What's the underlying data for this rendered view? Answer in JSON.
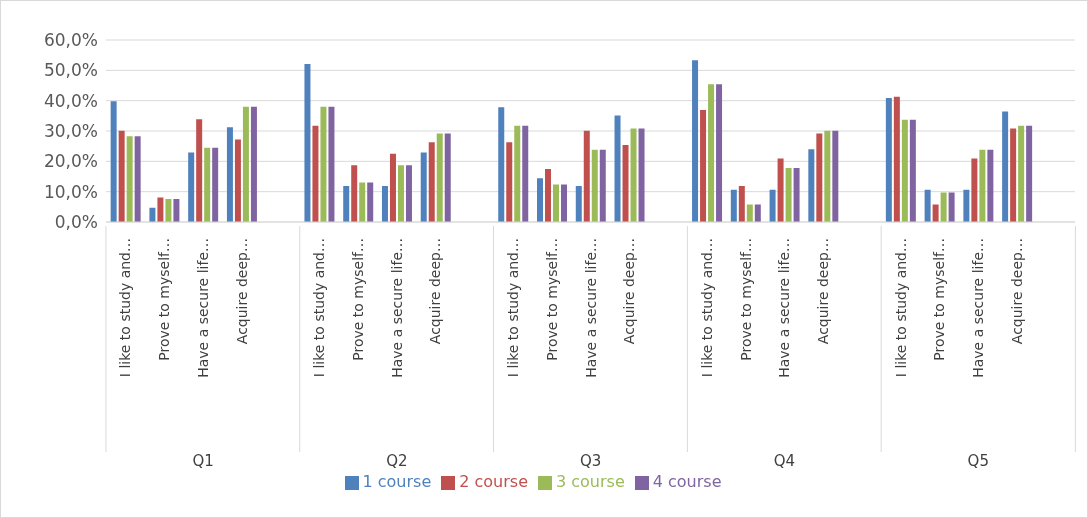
{
  "chart_data": {
    "type": "bar",
    "categories": [
      "I like to study and…",
      "Prove to myself…",
      "Have a secure life…",
      "Acquire deep…",
      null,
      "I like to study and…",
      "Prove to myself…",
      "Have a secure life…",
      "Acquire deep…",
      null,
      "I like to study and…",
      "Prove to myself…",
      "Have a secure life…",
      "Acquire deep…",
      null,
      "I like to study and…",
      "Prove to myself…",
      "Have a secure life…",
      "Acquire deep…",
      null,
      "I like to study and…",
      "Prove to myself…",
      "Have a secure life…",
      "Acquire deep…",
      null
    ],
    "series": [
      {
        "name": "1 course",
        "color": "#4f81bd",
        "values": [
          39.8,
          4.7,
          22.9,
          31.2,
          null,
          52.1,
          11.9,
          11.9,
          22.9,
          null,
          37.8,
          14.4,
          11.9,
          35.1,
          null,
          53.3,
          10.6,
          10.6,
          24.0,
          null,
          40.9,
          10.6,
          10.6,
          36.4,
          null
        ]
      },
      {
        "name": "2 course",
        "color": "#c0504d",
        "values": [
          30.1,
          8.1,
          33.9,
          27.2,
          null,
          31.7,
          18.7,
          22.5,
          26.3,
          null,
          26.3,
          17.5,
          30.1,
          25.4,
          null,
          36.9,
          11.9,
          20.9,
          29.2,
          null,
          41.3,
          5.8,
          20.9,
          30.8,
          null
        ]
      },
      {
        "name": "3 course",
        "color": "#9bbb59",
        "values": [
          28.3,
          7.6,
          24.5,
          38.0,
          null,
          38.0,
          13.0,
          18.7,
          29.2,
          null,
          31.7,
          12.4,
          23.8,
          30.8,
          null,
          45.4,
          5.8,
          17.8,
          30.1,
          null,
          33.7,
          9.7,
          23.8,
          31.7,
          null
        ]
      },
      {
        "name": "4 course",
        "color": "#8064a2",
        "values": [
          28.3,
          7.6,
          24.5,
          38.0,
          null,
          38.0,
          13.0,
          18.7,
          29.2,
          null,
          31.7,
          12.4,
          23.8,
          30.8,
          null,
          45.4,
          5.8,
          17.8,
          30.1,
          null,
          33.7,
          9.7,
          23.8,
          31.7,
          null
        ]
      }
    ],
    "annotations": [
      "Q1",
      "Q2",
      "Q3",
      "Q4",
      "Q5"
    ],
    "ylim": [
      0,
      60
    ],
    "yticks": [
      {
        "value": 0,
        "label": "0,0%"
      },
      {
        "value": 10,
        "label": "10,0%"
      },
      {
        "value": 20,
        "label": "20,0%"
      },
      {
        "value": 30,
        "label": "30,0%"
      },
      {
        "value": 40,
        "label": "40,0%"
      },
      {
        "value": 50,
        "label": "50,0%"
      },
      {
        "value": 60,
        "label": "60,0%"
      }
    ],
    "grid": "y",
    "legend": "bottom"
  }
}
